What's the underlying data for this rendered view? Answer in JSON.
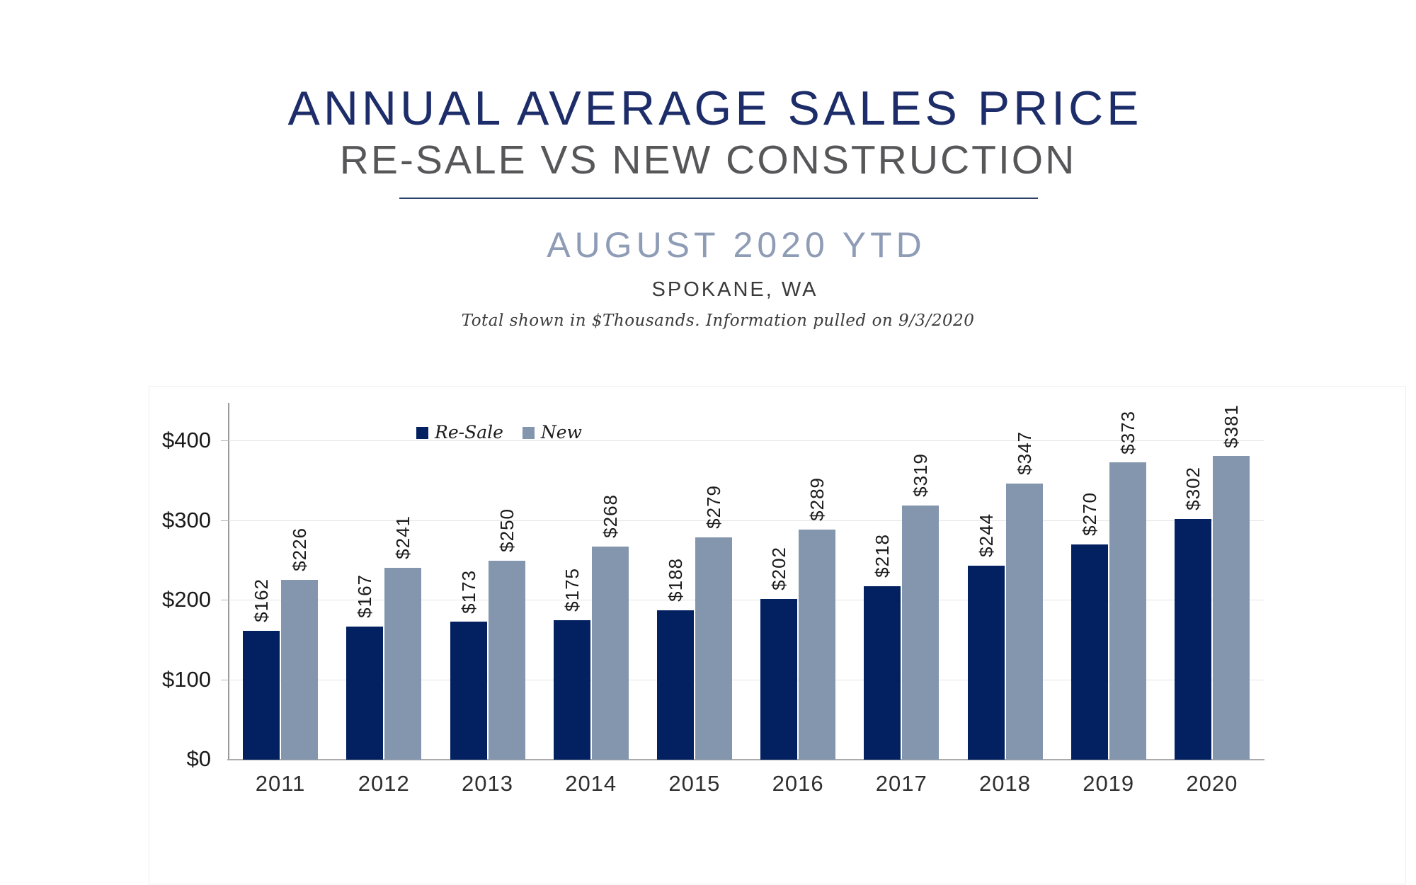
{
  "header": {
    "title": "ANNUAL AVERAGE SALES PRICE",
    "subtitle": "RE-SALE VS NEW CONSTRUCTION",
    "period": "AUGUST 2020 YTD",
    "location": "SPOKANE, WA",
    "note": "Total shown in $Thousands. Information pulled on 9/3/2020"
  },
  "colors": {
    "title_navy": "#1d2d69",
    "subtitle_gray": "#57575a",
    "divider_navy": "#2c3e68",
    "period_slate": "#8e9cb6",
    "location_dark": "#3a3a3a",
    "note_dark": "#3c3c3c",
    "resale_bar": "#032160",
    "new_bar": "#8496ae",
    "axis_gray": "#9a9a9a",
    "gridline": "#e4e4e4"
  },
  "chart_data": {
    "type": "bar",
    "title": "Annual Average Sales Price, Re-Sale vs New Construction, August 2020 YTD, Spokane WA",
    "categories": [
      "2011",
      "2012",
      "2013",
      "2014",
      "2015",
      "2016",
      "2017",
      "2018",
      "2019",
      "2020"
    ],
    "series": [
      {
        "name": "Re-Sale",
        "color": "#032160",
        "values": [
          162,
          167,
          173,
          175,
          188,
          202,
          218,
          244,
          270,
          302
        ]
      },
      {
        "name": "New",
        "color": "#8496ae",
        "values": [
          226,
          241,
          250,
          268,
          279,
          289,
          319,
          347,
          373,
          381
        ]
      }
    ],
    "value_label_prefix": "$",
    "y_tick_values": [
      0,
      100,
      200,
      300,
      400
    ],
    "y_tick_prefix": "$",
    "ylim": [
      0,
      448
    ],
    "grid": true,
    "legend_position": "top-inside",
    "xlabel": "",
    "ylabel": "",
    "units": "$Thousands"
  }
}
